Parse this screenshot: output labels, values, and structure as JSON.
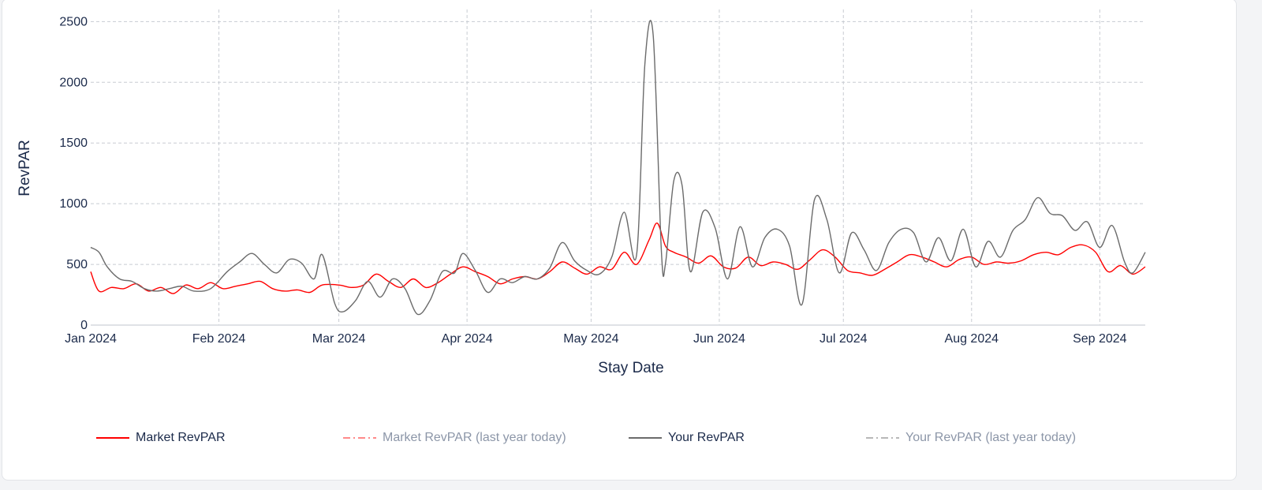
{
  "chart_data": {
    "type": "line",
    "xlabel": "Stay Date",
    "ylabel": "RevPAR",
    "x_range": [
      "2024-01-01",
      "2024-09-12"
    ],
    "ylim": [
      0,
      2600
    ],
    "y_ticks": [
      0,
      500,
      1000,
      1500,
      2000,
      2500
    ],
    "x_tick_labels": [
      "Jan 2024",
      "Feb 2024",
      "Mar 2024",
      "Apr 2024",
      "May 2024",
      "Jun 2024",
      "Jul 2024",
      "Aug 2024",
      "Sep 2024"
    ],
    "x_tick_dates": [
      "2024-01-01",
      "2024-02-01",
      "2024-03-01",
      "2024-04-01",
      "2024-05-01",
      "2024-06-01",
      "2024-07-01",
      "2024-08-01",
      "2024-09-01"
    ],
    "grid": true,
    "legend_position": "bottom",
    "series": [
      {
        "name": "Market RevPAR",
        "color": "#ff0000",
        "dash": "solid",
        "points": [
          [
            "2024-01-01",
            440
          ],
          [
            "2024-01-03",
            280
          ],
          [
            "2024-01-06",
            310
          ],
          [
            "2024-01-09",
            300
          ],
          [
            "2024-01-12",
            340
          ],
          [
            "2024-01-15",
            280
          ],
          [
            "2024-01-18",
            310
          ],
          [
            "2024-01-21",
            260
          ],
          [
            "2024-01-24",
            330
          ],
          [
            "2024-01-27",
            300
          ],
          [
            "2024-01-30",
            350
          ],
          [
            "2024-02-02",
            300
          ],
          [
            "2024-02-05",
            320
          ],
          [
            "2024-02-08",
            340
          ],
          [
            "2024-02-11",
            360
          ],
          [
            "2024-02-14",
            300
          ],
          [
            "2024-02-17",
            280
          ],
          [
            "2024-02-20",
            290
          ],
          [
            "2024-02-23",
            270
          ],
          [
            "2024-02-26",
            330
          ],
          [
            "2024-03-01",
            330
          ],
          [
            "2024-03-04",
            310
          ],
          [
            "2024-03-07",
            330
          ],
          [
            "2024-03-10",
            420
          ],
          [
            "2024-03-13",
            360
          ],
          [
            "2024-03-16",
            310
          ],
          [
            "2024-03-19",
            380
          ],
          [
            "2024-03-22",
            310
          ],
          [
            "2024-03-25",
            350
          ],
          [
            "2024-03-28",
            420
          ],
          [
            "2024-03-31",
            480
          ],
          [
            "2024-04-03",
            440
          ],
          [
            "2024-04-06",
            400
          ],
          [
            "2024-04-09",
            340
          ],
          [
            "2024-04-12",
            380
          ],
          [
            "2024-04-15",
            400
          ],
          [
            "2024-04-18",
            380
          ],
          [
            "2024-04-21",
            440
          ],
          [
            "2024-04-24",
            520
          ],
          [
            "2024-04-27",
            470
          ],
          [
            "2024-04-30",
            420
          ],
          [
            "2024-05-03",
            480
          ],
          [
            "2024-05-06",
            460
          ],
          [
            "2024-05-09",
            600
          ],
          [
            "2024-05-12",
            500
          ],
          [
            "2024-05-15",
            700
          ],
          [
            "2024-05-17",
            840
          ],
          [
            "2024-05-19",
            650
          ],
          [
            "2024-05-21",
            600
          ],
          [
            "2024-05-24",
            560
          ],
          [
            "2024-05-27",
            510
          ],
          [
            "2024-05-30",
            570
          ],
          [
            "2024-06-02",
            480
          ],
          [
            "2024-06-05",
            470
          ],
          [
            "2024-06-08",
            560
          ],
          [
            "2024-06-11",
            490
          ],
          [
            "2024-06-14",
            520
          ],
          [
            "2024-06-17",
            500
          ],
          [
            "2024-06-20",
            460
          ],
          [
            "2024-06-23",
            540
          ],
          [
            "2024-06-26",
            620
          ],
          [
            "2024-06-29",
            560
          ],
          [
            "2024-07-02",
            450
          ],
          [
            "2024-07-05",
            430
          ],
          [
            "2024-07-08",
            410
          ],
          [
            "2024-07-11",
            460
          ],
          [
            "2024-07-14",
            520
          ],
          [
            "2024-07-17",
            580
          ],
          [
            "2024-07-20",
            560
          ],
          [
            "2024-07-23",
            520
          ],
          [
            "2024-07-26",
            480
          ],
          [
            "2024-07-29",
            540
          ],
          [
            "2024-08-01",
            560
          ],
          [
            "2024-08-04",
            500
          ],
          [
            "2024-08-07",
            520
          ],
          [
            "2024-08-10",
            510
          ],
          [
            "2024-08-13",
            530
          ],
          [
            "2024-08-16",
            580
          ],
          [
            "2024-08-19",
            600
          ],
          [
            "2024-08-22",
            580
          ],
          [
            "2024-08-25",
            640
          ],
          [
            "2024-08-28",
            660
          ],
          [
            "2024-08-31",
            600
          ],
          [
            "2024-09-03",
            440
          ],
          [
            "2024-09-06",
            490
          ],
          [
            "2024-09-09",
            420
          ],
          [
            "2024-09-12",
            480
          ]
        ]
      },
      {
        "name": "Market RevPAR (last year today)",
        "color": "#ff8a8a",
        "dash": "dashdot",
        "points": []
      },
      {
        "name": "Your RevPAR",
        "color": "#6b6b6b",
        "dash": "solid",
        "points": [
          [
            "2024-01-01",
            640
          ],
          [
            "2024-01-03",
            600
          ],
          [
            "2024-01-05",
            480
          ],
          [
            "2024-01-08",
            380
          ],
          [
            "2024-01-11",
            360
          ],
          [
            "2024-01-14",
            300
          ],
          [
            "2024-01-17",
            280
          ],
          [
            "2024-01-20",
            300
          ],
          [
            "2024-01-23",
            320
          ],
          [
            "2024-01-26",
            280
          ],
          [
            "2024-01-30",
            300
          ],
          [
            "2024-02-03",
            440
          ],
          [
            "2024-02-06",
            520
          ],
          [
            "2024-02-09",
            590
          ],
          [
            "2024-02-12",
            500
          ],
          [
            "2024-02-15",
            430
          ],
          [
            "2024-02-18",
            540
          ],
          [
            "2024-02-21",
            510
          ],
          [
            "2024-02-24",
            380
          ],
          [
            "2024-02-26",
            580
          ],
          [
            "2024-02-29",
            180
          ],
          [
            "2024-03-02",
            110
          ],
          [
            "2024-03-05",
            200
          ],
          [
            "2024-03-08",
            360
          ],
          [
            "2024-03-11",
            230
          ],
          [
            "2024-03-14",
            380
          ],
          [
            "2024-03-17",
            300
          ],
          [
            "2024-03-20",
            90
          ],
          [
            "2024-03-23",
            200
          ],
          [
            "2024-03-26",
            440
          ],
          [
            "2024-03-29",
            430
          ],
          [
            "2024-03-31",
            590
          ],
          [
            "2024-04-03",
            450
          ],
          [
            "2024-04-06",
            270
          ],
          [
            "2024-04-09",
            380
          ],
          [
            "2024-04-12",
            350
          ],
          [
            "2024-04-15",
            400
          ],
          [
            "2024-04-18",
            380
          ],
          [
            "2024-04-21",
            470
          ],
          [
            "2024-04-24",
            680
          ],
          [
            "2024-04-27",
            530
          ],
          [
            "2024-04-30",
            450
          ],
          [
            "2024-05-03",
            420
          ],
          [
            "2024-05-06",
            560
          ],
          [
            "2024-05-09",
            930
          ],
          [
            "2024-05-12",
            580
          ],
          [
            "2024-05-14",
            2150
          ],
          [
            "2024-05-16",
            2390
          ],
          [
            "2024-05-18",
            600
          ],
          [
            "2024-05-19",
            510
          ],
          [
            "2024-05-21",
            1190
          ],
          [
            "2024-05-23",
            1150
          ],
          [
            "2024-05-25",
            440
          ],
          [
            "2024-05-28",
            930
          ],
          [
            "2024-05-31",
            800
          ],
          [
            "2024-06-03",
            380
          ],
          [
            "2024-06-06",
            810
          ],
          [
            "2024-06-09",
            480
          ],
          [
            "2024-06-12",
            720
          ],
          [
            "2024-06-15",
            790
          ],
          [
            "2024-06-18",
            650
          ],
          [
            "2024-06-21",
            170
          ],
          [
            "2024-06-24",
            1030
          ],
          [
            "2024-06-27",
            870
          ],
          [
            "2024-06-30",
            430
          ],
          [
            "2024-07-03",
            760
          ],
          [
            "2024-07-06",
            620
          ],
          [
            "2024-07-09",
            450
          ],
          [
            "2024-07-12",
            680
          ],
          [
            "2024-07-15",
            790
          ],
          [
            "2024-07-18",
            760
          ],
          [
            "2024-07-21",
            520
          ],
          [
            "2024-07-24",
            720
          ],
          [
            "2024-07-27",
            530
          ],
          [
            "2024-07-30",
            790
          ],
          [
            "2024-08-02",
            480
          ],
          [
            "2024-08-05",
            690
          ],
          [
            "2024-08-08",
            560
          ],
          [
            "2024-08-11",
            780
          ],
          [
            "2024-08-14",
            870
          ],
          [
            "2024-08-17",
            1050
          ],
          [
            "2024-08-20",
            920
          ],
          [
            "2024-08-23",
            900
          ],
          [
            "2024-08-26",
            780
          ],
          [
            "2024-08-29",
            850
          ],
          [
            "2024-09-01",
            640
          ],
          [
            "2024-09-04",
            820
          ],
          [
            "2024-09-07",
            520
          ],
          [
            "2024-09-09",
            430
          ],
          [
            "2024-09-12",
            600
          ]
        ]
      },
      {
        "name": "Your RevPAR (last year today)",
        "color": "#b8b8b8",
        "dash": "dashdot",
        "points": []
      }
    ]
  }
}
